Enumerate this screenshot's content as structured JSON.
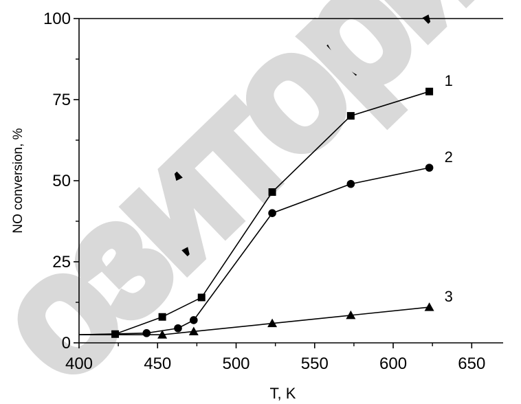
{
  "chart_data": {
    "type": "line",
    "xlabel": "T, K",
    "ylabel": "NO conversion,  %",
    "xlim": [
      400,
      670
    ],
    "ylim": [
      0,
      100
    ],
    "xticks": [
      400,
      450,
      500,
      550,
      600,
      650
    ],
    "yticks": [
      0,
      25,
      50,
      75,
      100
    ],
    "grid": false,
    "line_color": "#000000",
    "series": [
      {
        "name": "1",
        "marker": "square",
        "x": [
          400,
          423,
          453,
          478,
          523,
          573,
          623
        ],
        "y": [
          2.5,
          2.7,
          8,
          14,
          46.5,
          70,
          77.5
        ]
      },
      {
        "name": "2",
        "marker": "circle",
        "x": [
          400,
          443,
          463,
          473,
          523,
          573,
          623
        ],
        "y": [
          2.5,
          3,
          4.5,
          7,
          40,
          49,
          54
        ]
      },
      {
        "name": "3",
        "marker": "triangle",
        "x": [
          400,
          453,
          473,
          523,
          573,
          623
        ],
        "y": [
          2.5,
          2.5,
          3.5,
          6,
          8.5,
          11
        ]
      }
    ]
  },
  "watermark": {
    "color": "#d9d9d9"
  }
}
